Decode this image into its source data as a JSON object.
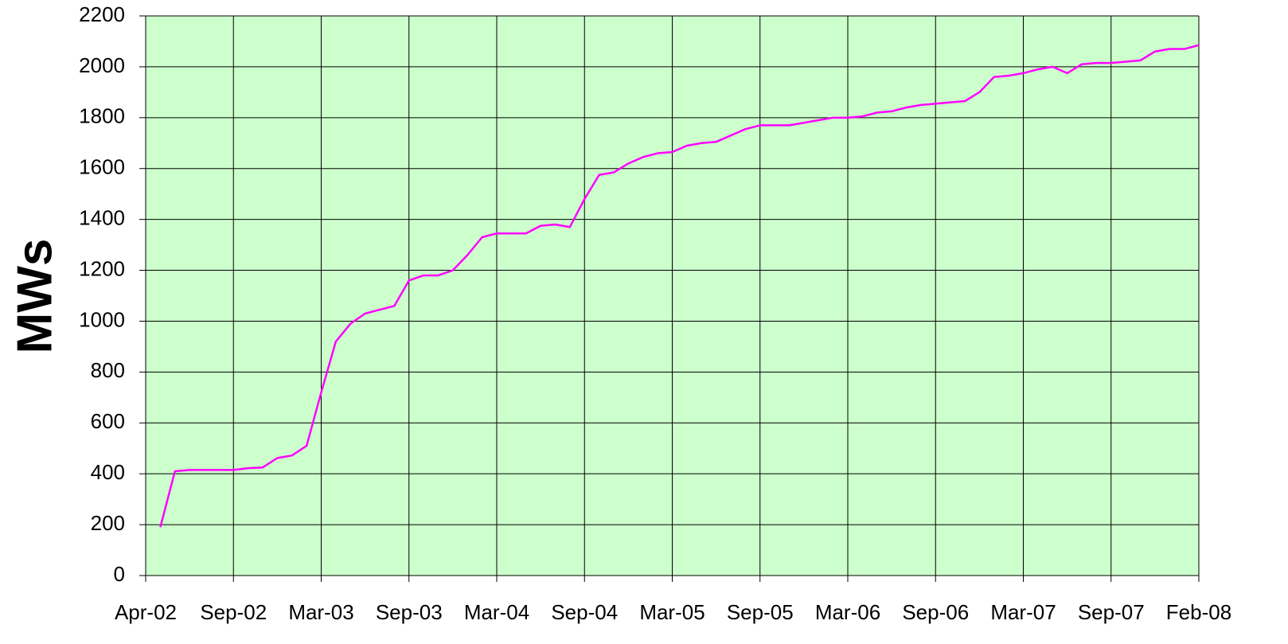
{
  "chart_data": {
    "type": "line",
    "y_label": "MWs",
    "categories": [
      "Apr-02",
      null,
      null,
      null,
      null,
      null,
      "Sep-02",
      null,
      null,
      null,
      null,
      null,
      "Mar-03",
      null,
      null,
      null,
      null,
      null,
      "Sep-03",
      null,
      null,
      null,
      null,
      null,
      "Mar-04",
      null,
      null,
      null,
      null,
      null,
      "Sep-04",
      null,
      null,
      null,
      null,
      null,
      "Mar-05",
      null,
      null,
      null,
      null,
      null,
      "Sep-05",
      null,
      null,
      null,
      null,
      null,
      "Mar-06",
      null,
      null,
      null,
      null,
      null,
      "Sep-06",
      null,
      null,
      null,
      null,
      null,
      "Mar-07",
      null,
      null,
      null,
      null,
      null,
      "Sep-07",
      null,
      null,
      null,
      null,
      null,
      "Feb-08"
    ],
    "values": [
      null,
      190,
      410,
      415,
      415,
      415,
      415,
      422,
      425,
      462,
      472,
      510,
      720,
      920,
      990,
      1030,
      1045,
      1060,
      1160,
      1180,
      1180,
      1200,
      1260,
      1330,
      1345,
      1345,
      1345,
      1375,
      1380,
      1370,
      1480,
      1575,
      1585,
      1620,
      1645,
      1660,
      1665,
      1690,
      1700,
      1705,
      1730,
      1755,
      1770,
      1770,
      1770,
      1780,
      1790,
      1800,
      1800,
      1805,
      1820,
      1825,
      1840,
      1850,
      1855,
      1860,
      1865,
      1900,
      1960,
      1965,
      1975,
      1990,
      2000,
      1975,
      2010,
      2015,
      2015,
      2020,
      2025,
      2060,
      2070,
      2070,
      2085
    ],
    "color": "#ff00ff",
    "background": "#ccffcc",
    "ylim": [
      0,
      2200
    ],
    "yticks": [
      0,
      200,
      400,
      600,
      800,
      1000,
      1200,
      1400,
      1600,
      1800,
      2000,
      2200
    ],
    "grid": true
  }
}
